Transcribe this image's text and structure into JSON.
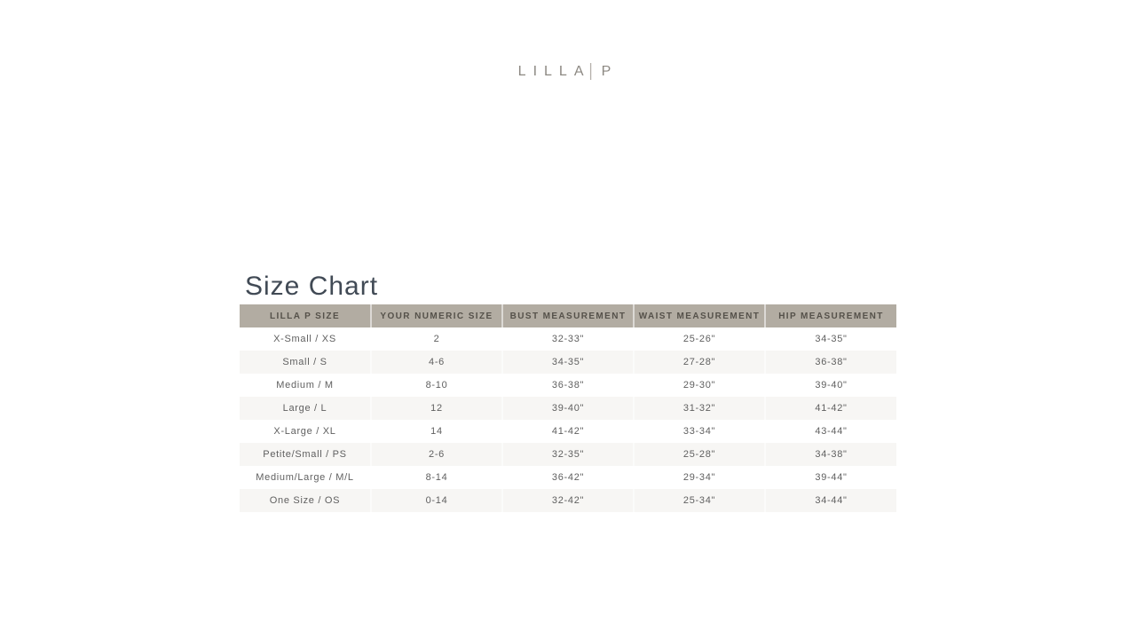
{
  "header": {
    "logo": {
      "text_left": "LILLA",
      "divider": "|",
      "text_right": "P"
    }
  },
  "size_chart": {
    "title": "Size Chart",
    "columns": [
      "LILLA P SIZE",
      "YOUR NUMERIC SIZE",
      "BUST MEASUREMENT",
      "WAIST MEASUREMENT",
      "HIP MEASUREMENT"
    ],
    "rows": [
      [
        "X-Small / XS",
        "2",
        "32-33\"",
        "25-26\"",
        "34-35\""
      ],
      [
        "Small / S",
        "4-6",
        "34-35\"",
        "27-28\"",
        "36-38\""
      ],
      [
        "Medium / M",
        "8-10",
        "36-38\"",
        "29-30\"",
        "39-40\""
      ],
      [
        "Large / L",
        "12",
        "39-40\"",
        "31-32\"",
        "41-42\""
      ],
      [
        "X-Large / XL",
        "14",
        "41-42\"",
        "33-34\"",
        "43-44\""
      ],
      [
        "Petite/Small / PS",
        "2-6",
        "32-35\"",
        "25-28\"",
        "34-38\""
      ],
      [
        "Medium/Large / M/L",
        "8-14",
        "36-42\"",
        "29-34\"",
        "39-44\""
      ],
      [
        "One Size / OS",
        "0-14",
        "32-42\"",
        "25-34\"",
        "34-44\""
      ]
    ]
  },
  "colors": {
    "header_bg": "#b2aca2",
    "header_text": "#55514a",
    "row_alt_bg": "#f7f6f4",
    "cell_text": "#5f5f5f",
    "title_text": "#414a55",
    "logo_text": "#8c8882",
    "page_bg": "#ffffff"
  }
}
